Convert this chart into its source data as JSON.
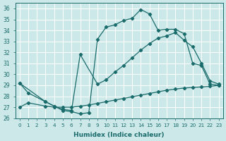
{
  "xlabel": "Humidex (Indice chaleur)",
  "ylabel": "",
  "bg_color": "#cce8e8",
  "grid_color": "#ffffff",
  "line_color": "#1a6b6b",
  "xlim": [
    -0.5,
    23.5
  ],
  "ylim": [
    26,
    36.5
  ],
  "xticks": [
    0,
    1,
    2,
    3,
    4,
    5,
    6,
    7,
    8,
    9,
    10,
    11,
    12,
    13,
    14,
    15,
    16,
    17,
    18,
    19,
    20,
    21,
    22,
    23
  ],
  "yticks": [
    26,
    27,
    28,
    29,
    30,
    31,
    32,
    33,
    34,
    35,
    36
  ],
  "curve1_x": [
    0,
    1,
    3,
    4,
    5,
    6,
    7,
    8,
    9,
    10,
    11,
    12,
    13,
    14,
    15,
    16,
    17,
    18,
    19,
    20,
    21,
    22,
    23
  ],
  "curve1_y": [
    29.2,
    28.3,
    27.5,
    27.1,
    26.7,
    26.6,
    26.4,
    26.5,
    33.2,
    34.3,
    34.5,
    34.9,
    35.1,
    35.9,
    35.5,
    34.0,
    34.1,
    34.1,
    33.7,
    31.0,
    30.8,
    29.1,
    29.0
  ],
  "curve2_x": [
    0,
    3,
    4,
    5,
    6,
    7,
    9,
    10,
    11,
    12,
    13,
    14,
    15,
    16,
    17,
    18,
    19,
    20,
    21,
    22,
    23
  ],
  "curve2_y": [
    29.2,
    27.5,
    27.1,
    26.8,
    26.7,
    31.8,
    29.1,
    29.5,
    30.2,
    30.8,
    31.5,
    32.2,
    32.8,
    33.3,
    33.5,
    33.8,
    33.1,
    32.5,
    31.0,
    29.4,
    29.1
  ],
  "curve3_x": [
    0,
    1,
    3,
    4,
    5,
    6,
    7,
    8,
    9,
    10,
    11,
    12,
    13,
    14,
    15,
    16,
    17,
    18,
    19,
    20,
    21,
    22,
    23
  ],
  "curve3_y": [
    27.0,
    27.4,
    27.1,
    27.0,
    27.0,
    27.0,
    27.1,
    27.2,
    27.35,
    27.5,
    27.65,
    27.8,
    27.95,
    28.1,
    28.25,
    28.4,
    28.55,
    28.65,
    28.75,
    28.8,
    28.85,
    28.9,
    29.0
  ]
}
